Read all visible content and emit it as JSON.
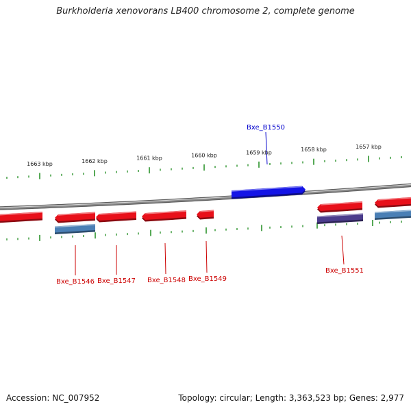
{
  "title": "Burkholderia xenovorans LB400 chromosome 2, complete genome",
  "footer": {
    "accession": "Accession: NC_007952",
    "summary": "Topology: circular; Length: 3,363,523 bp; Genes: 2,977"
  },
  "colors": {
    "backbone": "#8a8a8a",
    "tick": "#1e8c1e",
    "gene_red": "#e8101a",
    "gene_blue": "#1414e6",
    "gene_steel": "#4a7fb5",
    "gene_purple": "#4b3c8c",
    "label_red": "#cc0000",
    "label_blue": "#0000cc"
  },
  "scale_labels": [
    "1663 kbp",
    "1662 kbp",
    "1661 kbp",
    "1660 kbp",
    "1659 kbp",
    "1658 kbp",
    "1657 kbp"
  ],
  "gene_labels": [
    "Bxe_B1546",
    "Bxe_B1547",
    "Bxe_B1548",
    "Bxe_B1549",
    "Bxe_B1550",
    "Bxe_B1551"
  ]
}
